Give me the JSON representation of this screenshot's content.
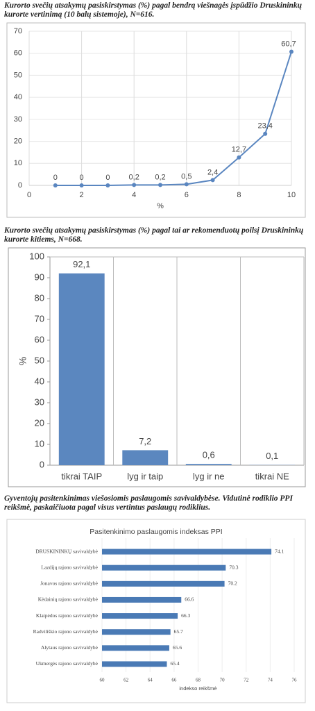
{
  "chart_data": [
    {
      "type": "line",
      "caption": "Kurorto svečių atsakymų pasiskirstymas (%) pagal bendrą viešnagės įspūdžio Druskininkų kurorte vertinimą (10 balų sistemoje), N=616.",
      "x_label": "%",
      "x": [
        1,
        2,
        3,
        4,
        5,
        6,
        7,
        8,
        9,
        10
      ],
      "values": [
        0,
        0,
        0,
        0.2,
        0.2,
        0.5,
        2.4,
        12.7,
        23.4,
        60.7
      ],
      "value_labels": [
        "0",
        "0",
        "0",
        "0,2",
        "0,2",
        "0,5",
        "2,4",
        "12,7",
        "23,4",
        "60,7"
      ],
      "color": "#5a86c0",
      "xlim": [
        0,
        10
      ],
      "xticks": [
        0,
        2,
        4,
        6,
        8,
        10
      ],
      "ylim": [
        0,
        70
      ],
      "yticks": [
        0,
        10,
        20,
        30,
        40,
        50,
        60,
        70
      ],
      "grid": true
    },
    {
      "type": "bar",
      "caption": "Kurorto svečių atsakymų pasiskirstymas (%) pagal tai  ar rekomenduotų poilsį Druskininkų kurorte kitiems, N=668.",
      "y_label": "%",
      "categories": [
        "tikrai TAIP",
        "lyg ir taip",
        "lyg ir ne",
        "tikrai NE"
      ],
      "values": [
        92.1,
        7.2,
        0.6,
        0.1
      ],
      "value_labels": [
        "92,1",
        "7,2",
        "0,6",
        "0,1"
      ],
      "color": "#5b87bf",
      "ylim": [
        0,
        100
      ],
      "yticks": [
        0,
        10,
        20,
        30,
        40,
        50,
        60,
        70,
        80,
        90,
        100
      ],
      "grid": false
    },
    {
      "type": "hbar",
      "caption": "Gyventojų pasitenkinimas viešosiomis paslaugomis savivaldybėse. Vidutinė rodiklio PPI reikšmė, paskaičiuota pagal visus vertintus paslaugų rodiklius.",
      "title": "Pasitenkinimo paslaugomis indeksas PPI",
      "x_label": "indekso reikšmė",
      "categories": [
        "DRUSKININKŲ savivaldybė",
        "Lazdijų rajono savivaldybė",
        "Jonavos rajono savivaldybė",
        "Kėdainių rajono savivaldybė",
        "Klaipėdos rajono savivaldybė",
        "Radviliškio rajono savivaldybė",
        "Alytaus rajono savivaldybė",
        "Ukmergės rajono savivaldybė"
      ],
      "values": [
        74.1,
        70.3,
        70.2,
        66.6,
        66.3,
        65.7,
        65.6,
        65.4
      ],
      "color": "#4a7ab5",
      "xlim": [
        60,
        76
      ],
      "xticks": [
        60,
        62,
        64,
        66,
        68,
        70,
        72,
        74,
        76
      ],
      "grid": true
    }
  ]
}
